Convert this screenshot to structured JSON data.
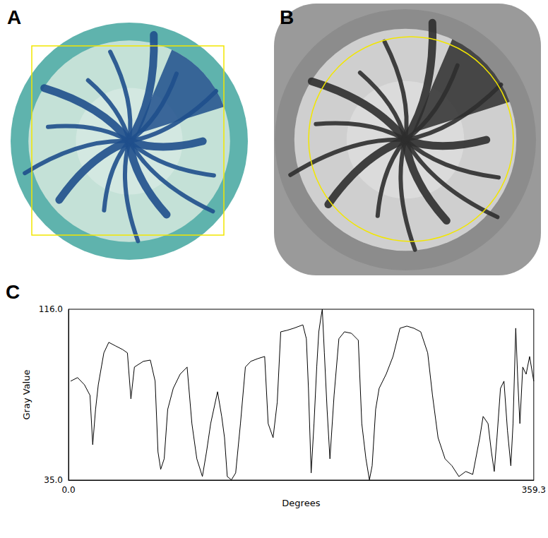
{
  "image_panels": [
    {
      "label": "A"
    },
    {
      "label": "B"
    }
  ],
  "chart_data": {
    "panel_label": "C",
    "type": "line",
    "xlabel": "Degrees",
    "ylabel": "Gray Value",
    "color": "#000000",
    "grid": false,
    "xlim": [
      0,
      359.3
    ],
    "ylim": [
      35,
      116
    ],
    "xticks": [
      {
        "value": 0,
        "label": "0.0"
      },
      {
        "value": 359.3,
        "label": "359.3"
      }
    ],
    "yticks": [
      {
        "value": 35,
        "label": "35.0"
      },
      {
        "value": 116,
        "label": "116.0"
      }
    ],
    "x": [
      1.6,
      7.0,
      12.3,
      16.6,
      18.7,
      20.9,
      23.0,
      27.3,
      31.1,
      36.4,
      41.8,
      45.5,
      48.2,
      50.9,
      57.8,
      63.2,
      66.9,
      69.1,
      71.2,
      73.9,
      76.6,
      80.9,
      86.2,
      91.6,
      95.3,
      99.1,
      103.4,
      106.6,
      109.8,
      115.1,
      118.3,
      120.5,
      122.6,
      125.8,
      129.1,
      132.8,
      136.6,
      140.8,
      146.2,
      151.5,
      154.2,
      158.0,
      161.2,
      163.9,
      168.7,
      174.0,
      181.0,
      183.7,
      185.3,
      187.4,
      189.6,
      191.7,
      193.3,
      194.9,
      196.0,
      197.6,
      199.7,
      201.9,
      205.1,
      208.8,
      213.1,
      218.5,
      223.8,
      226.5,
      229.7,
      232.4,
      234.5,
      237.2,
      239.9,
      245.3,
      250.6,
      256.0,
      261.3,
      266.7,
      272.0,
      277.4,
      281.1,
      285.4,
      290.8,
      296.1,
      301.5,
      306.8,
      312.2,
      317.6,
      320.2,
      324.0,
      326.6,
      328.8,
      330.9,
      333.6,
      336.3,
      339.0,
      341.6,
      343.3,
      345.4,
      347.0,
      348.6,
      350.8,
      353.4,
      356.1,
      359.3
    ],
    "values": [
      81.9,
      83.6,
      80.2,
      75.2,
      51.8,
      68.5,
      80.2,
      95.3,
      100.3,
      98.6,
      96.9,
      95.3,
      73.5,
      88.6,
      91.3,
      91.9,
      81.9,
      48.4,
      40.1,
      45.1,
      68.5,
      78.5,
      85.2,
      88.6,
      61.8,
      45.1,
      36.7,
      48.4,
      61.8,
      76.9,
      65.2,
      55.1,
      36.7,
      35.1,
      38.4,
      61.8,
      88.6,
      91.3,
      92.6,
      93.6,
      61.8,
      55.1,
      71.9,
      105.3,
      106.0,
      107.0,
      108.6,
      102.0,
      78.5,
      38.4,
      61.8,
      88.6,
      105.3,
      112.0,
      116.0,
      95.3,
      68.5,
      45.1,
      75.2,
      102.0,
      105.3,
      104.6,
      101.3,
      61.8,
      45.1,
      35.1,
      41.8,
      68.5,
      78.5,
      85.2,
      93.6,
      107.0,
      108.0,
      107.0,
      105.3,
      95.3,
      75.2,
      55.1,
      45.1,
      41.8,
      36.7,
      39.1,
      37.7,
      55.1,
      65.2,
      61.8,
      48.4,
      39.1,
      55.1,
      78.5,
      81.9,
      58.5,
      41.8,
      61.8,
      107.0,
      81.9,
      61.8,
      88.6,
      85.2,
      93.6,
      81.9
    ]
  }
}
